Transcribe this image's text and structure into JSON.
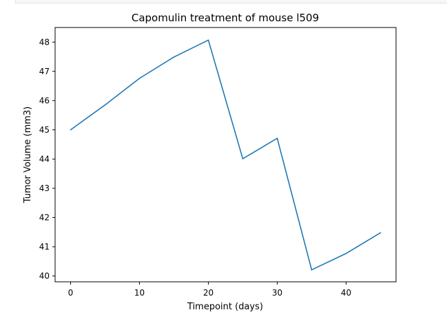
{
  "chart_data": {
    "type": "line",
    "title": "Capomulin treatment of mouse l509",
    "xlabel": "Timepoint (days)",
    "ylabel": "Tumor Volume (mm3)",
    "xlim": [
      -2.25,
      47.25
    ],
    "ylim": [
      39.8,
      48.5
    ],
    "xticks": [
      0,
      10,
      20,
      30,
      40
    ],
    "yticks": [
      40,
      41,
      42,
      43,
      44,
      45,
      46,
      47,
      48
    ],
    "grid": false,
    "series": [
      {
        "color": "#1f77b4",
        "x": [
          0,
          5,
          10,
          15,
          20,
          25,
          30,
          35,
          40,
          45
        ],
        "y": [
          45.0,
          45.85,
          46.76,
          47.49,
          48.07,
          44.01,
          44.71,
          40.21,
          40.77,
          41.48
        ]
      }
    ]
  }
}
